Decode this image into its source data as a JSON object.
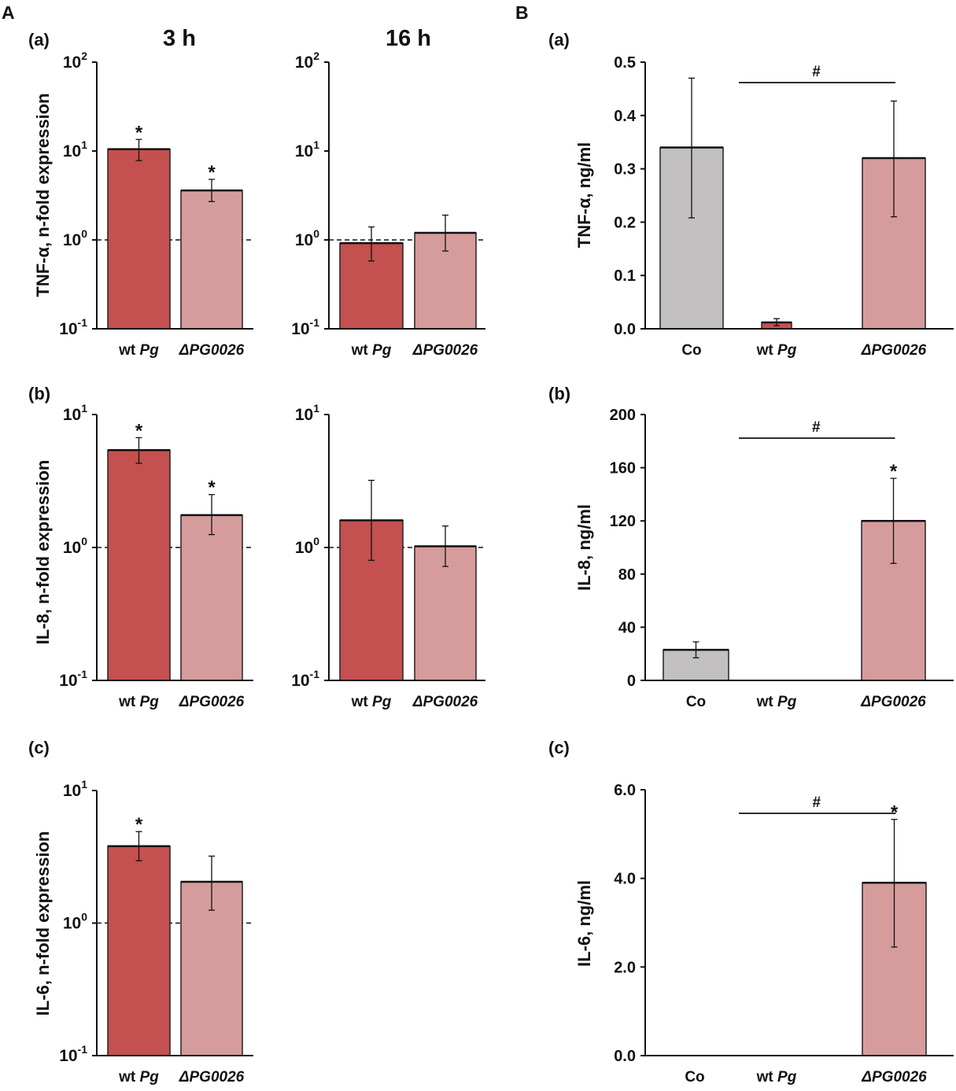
{
  "figure": {
    "panel_A_letter": "A",
    "panel_B_letter": "B",
    "col_3h_title": "3 h",
    "col_16h_title": "16 h"
  },
  "colors": {
    "wt": "#c55050",
    "mut": "#d69c9c",
    "co": "#c2c0c0",
    "axis": "#111111"
  },
  "chart_data": [
    {
      "id": "A-a-3h",
      "type": "bar",
      "scale": "log",
      "sublabel": "(a)",
      "ylabel": "TNF-α, n-fold expression",
      "ylim": [
        0.1,
        100
      ],
      "ticks": [
        {
          "b": "10",
          "e": "-1"
        },
        {
          "b": "10",
          "e": "0"
        },
        {
          "b": "10",
          "e": "1"
        },
        {
          "b": "10",
          "e": "2"
        }
      ],
      "categories": [
        {
          "pre": "wt ",
          "it": "Pg"
        },
        {
          "pre": "",
          "it": "ΔPG0026"
        }
      ],
      "series": [
        {
          "name": "wt Pg",
          "color": "wt",
          "value": 10.5,
          "err_low": 7.8,
          "err_high": 13.5,
          "star": "*"
        },
        {
          "name": "ΔPG0026",
          "color": "mut",
          "value": 3.6,
          "err_low": 2.7,
          "err_high": 4.8,
          "star": "*"
        }
      ],
      "reference_line": 1
    },
    {
      "id": "A-a-16h",
      "type": "bar",
      "scale": "log",
      "ylim": [
        0.1,
        100
      ],
      "ticks": [
        {
          "b": "10",
          "e": "-1"
        },
        {
          "b": "10",
          "e": "0"
        },
        {
          "b": "10",
          "e": "1"
        },
        {
          "b": "10",
          "e": "2"
        }
      ],
      "categories": [
        {
          "pre": "wt ",
          "it": "Pg"
        },
        {
          "pre": "",
          "it": "ΔPG0026"
        }
      ],
      "series": [
        {
          "name": "wt Pg",
          "color": "wt",
          "value": 0.92,
          "err_low": 0.58,
          "err_high": 1.4
        },
        {
          "name": "ΔPG0026",
          "color": "mut",
          "value": 1.2,
          "err_low": 0.75,
          "err_high": 1.9
        }
      ],
      "reference_line": 1
    },
    {
      "id": "A-b-3h",
      "type": "bar",
      "scale": "log",
      "sublabel": "(b)",
      "ylabel": "IL-8, n-fold expression",
      "ylim": [
        0.1,
        10
      ],
      "ticks": [
        {
          "b": "10",
          "e": "-1"
        },
        {
          "b": "10",
          "e": "0"
        },
        {
          "b": "10",
          "e": "1"
        }
      ],
      "categories": [
        {
          "pre": "wt ",
          "it": "Pg"
        },
        {
          "pre": "",
          "it": "ΔPG0026"
        }
      ],
      "series": [
        {
          "name": "wt Pg",
          "color": "wt",
          "value": 5.4,
          "err_low": 4.3,
          "err_high": 6.7,
          "star": "*"
        },
        {
          "name": "ΔPG0026",
          "color": "mut",
          "value": 1.75,
          "err_low": 1.25,
          "err_high": 2.5,
          "star": "*"
        }
      ],
      "reference_line": 1
    },
    {
      "id": "A-b-16h",
      "type": "bar",
      "scale": "log",
      "ylim": [
        0.1,
        10
      ],
      "ticks": [
        {
          "b": "10",
          "e": "-1"
        },
        {
          "b": "10",
          "e": "0"
        },
        {
          "b": "10",
          "e": "1"
        }
      ],
      "categories": [
        {
          "pre": "wt ",
          "it": "Pg"
        },
        {
          "pre": "",
          "it": "ΔPG0026"
        }
      ],
      "series": [
        {
          "name": "wt Pg",
          "color": "wt",
          "value": 1.6,
          "err_low": 0.8,
          "err_high": 3.2
        },
        {
          "name": "ΔPG0026",
          "color": "mut",
          "value": 1.02,
          "err_low": 0.72,
          "err_high": 1.45
        }
      ],
      "reference_line": 1
    },
    {
      "id": "A-c-3h",
      "type": "bar",
      "scale": "log",
      "sublabel": "(c)",
      "ylabel": "IL-6, n-fold expression",
      "ylim": [
        0.1,
        10
      ],
      "ticks": [
        {
          "b": "10",
          "e": "-1"
        },
        {
          "b": "10",
          "e": "0"
        },
        {
          "b": "10",
          "e": "1"
        }
      ],
      "categories": [
        {
          "pre": "wt ",
          "it": "Pg"
        },
        {
          "pre": "",
          "it": "ΔPG0026"
        }
      ],
      "series": [
        {
          "name": "wt Pg",
          "color": "wt",
          "value": 3.8,
          "err_low": 2.95,
          "err_high": 4.9,
          "star": "*"
        },
        {
          "name": "ΔPG0026",
          "color": "mut",
          "value": 2.05,
          "err_low": 1.25,
          "err_high": 3.2
        }
      ],
      "reference_line": 1
    },
    {
      "id": "B-a",
      "type": "bar",
      "scale": "linear",
      "sublabel": "(a)",
      "ylabel": "TNF-α, ng/ml",
      "ylim": [
        0,
        0.5
      ],
      "ticks": [
        "0.0",
        "0.1",
        "0.2",
        "0.3",
        "0.4",
        "0.5"
      ],
      "tick_values": [
        0,
        0.1,
        0.2,
        0.3,
        0.4,
        0.5
      ],
      "categories": [
        {
          "pre": "Co",
          "it": ""
        },
        {
          "pre": "wt ",
          "it": "Pg"
        },
        {
          "pre": "",
          "it": "ΔPG0026"
        }
      ],
      "series": [
        {
          "name": "Co",
          "color": "co",
          "value": 0.34,
          "err_low": 0.208,
          "err_high": 0.47
        },
        {
          "name": "wt Pg",
          "color": "wt",
          "value": 0.012,
          "err_low": 0.006,
          "err_high": 0.019
        },
        {
          "name": "ΔPG0026",
          "color": "mut",
          "value": 0.32,
          "err_low": 0.21,
          "err_high": 0.427
        }
      ],
      "significance": {
        "from": 1,
        "to": 2,
        "label": "#"
      }
    },
    {
      "id": "B-b",
      "type": "bar",
      "scale": "linear",
      "sublabel": "(b)",
      "ylabel": "IL-8, ng/ml",
      "ylim": [
        0,
        200
      ],
      "ticks": [
        "0",
        "40",
        "80",
        "120",
        "160",
        "200"
      ],
      "tick_values": [
        0,
        40,
        80,
        120,
        160,
        200
      ],
      "categories": [
        {
          "pre": "Co",
          "it": ""
        },
        {
          "pre": "wt ",
          "it": "Pg"
        },
        {
          "pre": "",
          "it": "ΔPG0026"
        }
      ],
      "series": [
        {
          "name": "Co",
          "color": "co",
          "value": 23,
          "err_low": 17,
          "err_high": 29
        },
        {
          "name": "wt Pg",
          "color": "wt",
          "value": 0
        },
        {
          "name": "ΔPG0026",
          "color": "mut",
          "value": 120,
          "err_low": 88,
          "err_high": 152,
          "star": "*"
        }
      ],
      "significance": {
        "from": 1,
        "to": 2,
        "label": "#"
      }
    },
    {
      "id": "B-c",
      "type": "bar",
      "scale": "linear",
      "sublabel": "(c)",
      "ylabel": "IL-6, ng/ml",
      "ylim": [
        0,
        6
      ],
      "ticks": [
        "0.0",
        "2.0",
        "4.0",
        "6.0"
      ],
      "tick_values": [
        0,
        2,
        4,
        6
      ],
      "categories": [
        {
          "pre": "Co",
          "it": ""
        },
        {
          "pre": "wt ",
          "it": "Pg"
        },
        {
          "pre": "",
          "it": "ΔPG0026"
        }
      ],
      "series": [
        {
          "name": "Co",
          "color": "co",
          "value": 0
        },
        {
          "name": "wt Pg",
          "color": "wt",
          "value": 0
        },
        {
          "name": "ΔPG0026",
          "color": "mut",
          "value": 3.9,
          "err_low": 2.45,
          "err_high": 5.33,
          "star": "*"
        }
      ],
      "significance": {
        "from": 1,
        "to": 2,
        "label": "#"
      }
    }
  ]
}
